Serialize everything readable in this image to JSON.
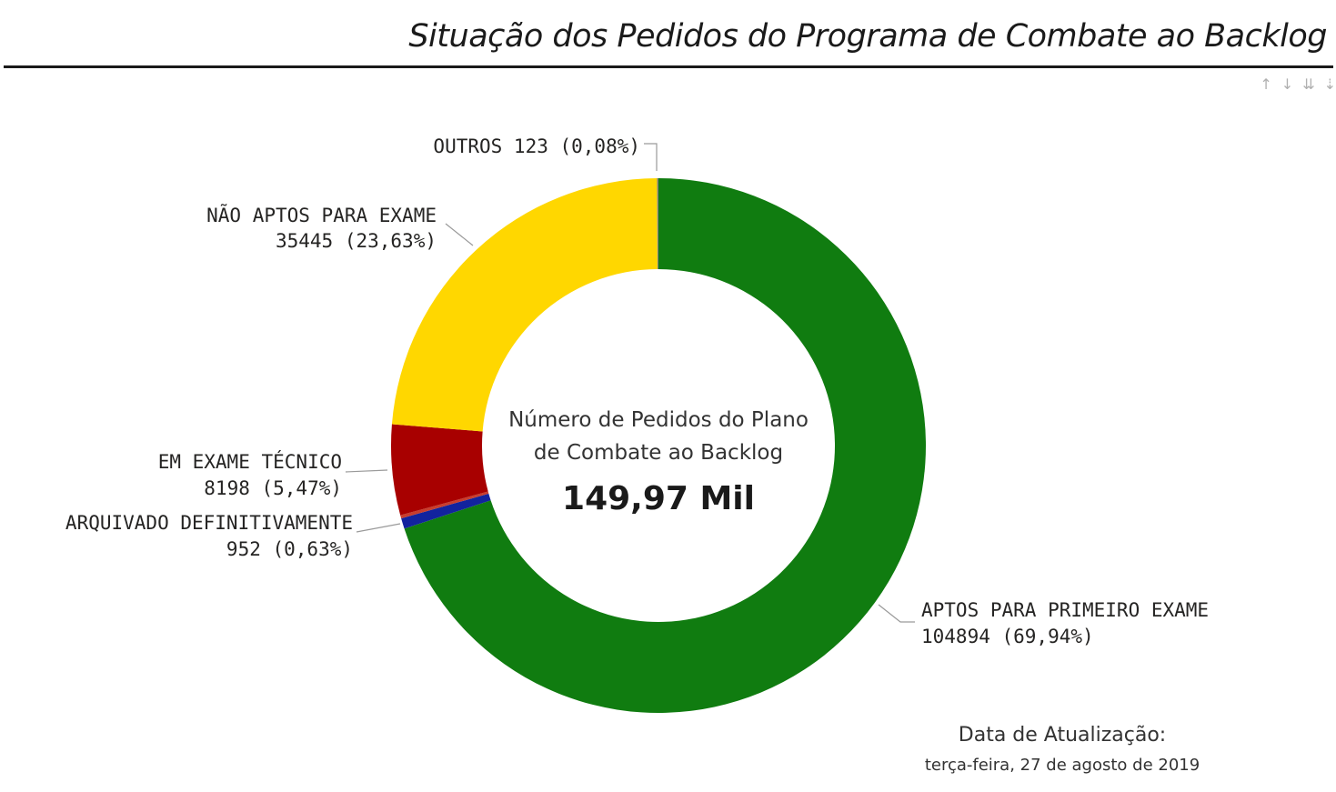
{
  "page": {
    "title": "Situação dos Pedidos do Programa de Combate ao Backlog"
  },
  "toolbar": {
    "icons": [
      {
        "name": "sort-up-icon",
        "glyph": "↑"
      },
      {
        "name": "sort-down-icon",
        "glyph": "↓"
      },
      {
        "name": "expand-all-down-icon",
        "glyph": "⇊"
      },
      {
        "name": "drill-icon",
        "glyph": "⇣"
      }
    ]
  },
  "center": {
    "caption_line1": "Número de Pedidos do Plano",
    "caption_line2": "de Combate ao Backlog",
    "value": "149,97 Mil"
  },
  "update": {
    "label": "Data de Atualização:",
    "date": "terça-feira, 27 de agosto de 2019"
  },
  "chart_data": {
    "type": "pie",
    "donut": true,
    "slices": [
      {
        "name": "APTOS PARA PRIMEIRO EXAME",
        "value": 104894,
        "value_label": "104894 (69,94%)",
        "percent": 69.94,
        "color": "#107C10"
      },
      {
        "name": "ARQUIVADO DEFINITIVAMENTE",
        "value": 952,
        "value_label": "952 (0,63%)",
        "percent": 0.63,
        "color": "#12239E"
      },
      {
        "name": "",
        "value": 300,
        "value_label": "",
        "percent": 0.2,
        "color": "#C83D2D"
      },
      {
        "name": "EM EXAME TÉCNICO",
        "value": 8198,
        "value_label": "8198 (5,47%)",
        "percent": 5.47,
        "color": "#A80000"
      },
      {
        "name": "NÃO APTOS PARA EXAME",
        "value": 35445,
        "value_label": "35445 (23,63%)",
        "percent": 23.63,
        "color": "#FFD700"
      },
      {
        "name": "OUTROS",
        "value": 123,
        "value_label": "OUTROS 123 (0,08%)",
        "percent": 0.08,
        "color": "#7F7F7F"
      }
    ],
    "legend": "none"
  }
}
